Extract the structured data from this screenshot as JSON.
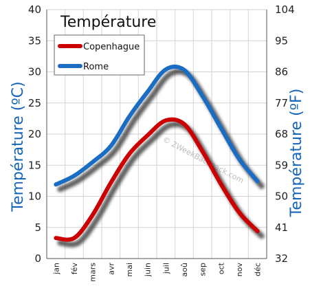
{
  "chart_data": {
    "type": "line",
    "title": "Température",
    "ylabel_left": "Température  (ºC)",
    "ylabel_right": "Température  (ºF)",
    "categories": [
      "jan",
      "fév",
      "mars",
      "avr",
      "mai",
      "juin",
      "juil",
      "aoû",
      "sep",
      "oct",
      "nov",
      "déc"
    ],
    "ylim": [
      0,
      40
    ],
    "y_ticks_left": [
      0,
      5,
      10,
      15,
      20,
      25,
      30,
      35,
      40
    ],
    "y_ticks_right": [
      "32",
      "41",
      "50",
      "59",
      "68",
      "77",
      "86",
      "95",
      "104"
    ],
    "grid": true,
    "legend_position": "top-left",
    "series": [
      {
        "name": "Copenhague",
        "color": "#cc0000",
        "values": [
          3.3,
          3.3,
          7.0,
          12.2,
          16.8,
          19.8,
          22.2,
          21.6,
          17.2,
          12.0,
          7.4,
          4.4
        ]
      },
      {
        "name": "Rome",
        "color": "#1a6dc2",
        "values": [
          11.9,
          13.3,
          15.5,
          18.1,
          22.8,
          26.8,
          30.4,
          30.3,
          26.1,
          21.0,
          16.0,
          12.4
        ]
      }
    ],
    "watermark": "© 2WeekBackpack.com"
  }
}
